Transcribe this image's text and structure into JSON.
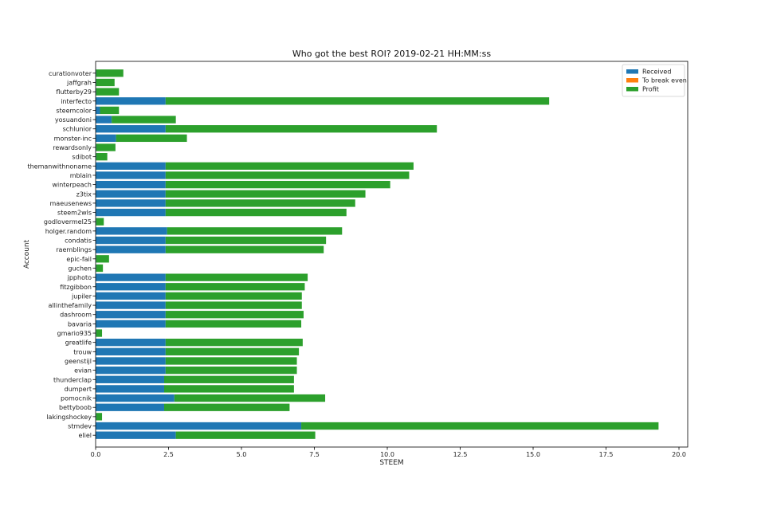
{
  "chart_data": {
    "type": "bar",
    "orientation": "horizontal",
    "stacked": true,
    "title": "Who got the best ROI? 2019-02-21 HH:MM:ss",
    "xlabel": "STEEM",
    "ylabel": "Account",
    "xlim": [
      0,
      20.3
    ],
    "xticks": [
      0.0,
      2.5,
      5.0,
      7.5,
      10.0,
      12.5,
      15.0,
      17.5,
      20.0
    ],
    "xtick_labels": [
      "0.0",
      "2.5",
      "5.0",
      "7.5",
      "10.0",
      "12.5",
      "15.0",
      "17.5",
      "20.0"
    ],
    "grid": false,
    "legend_position": "top-right",
    "categories": [
      "curationvoter",
      "jaffgrah",
      "flutterby29",
      "interfecto",
      "steemcolor",
      "yosuandoni",
      "schlunior",
      "monster-inc",
      "rewardsonly",
      "sdibot",
      "themanwithnoname",
      "mblain",
      "winterpeach",
      "z3tix",
      "maeusenews",
      "steem2wls",
      "godlovermel25",
      "holger.random",
      "condatis",
      "raemblings",
      "epic-fail",
      "guchen",
      "jpphoto",
      "fitzgibbon",
      "jupiler",
      "allinthefamily",
      "dashroom",
      "bavaria",
      "gmario935",
      "greatlife",
      "trouw",
      "geenstijl",
      "evian",
      "thunderclap",
      "dumpert",
      "pomocnik",
      "bettyboob",
      "lakingshockey",
      "stmdev",
      "eliel"
    ],
    "series": [
      {
        "name": "Received",
        "color": "#1f77b4",
        "values": [
          0.02,
          0.02,
          0.02,
          2.4,
          0.15,
          0.55,
          2.4,
          0.7,
          0.02,
          0.02,
          2.4,
          2.4,
          2.4,
          2.4,
          2.4,
          2.4,
          0.02,
          2.45,
          2.4,
          2.4,
          0.02,
          0.02,
          2.4,
          2.4,
          2.4,
          2.4,
          2.4,
          2.4,
          0.02,
          2.4,
          2.4,
          2.4,
          2.4,
          2.35,
          2.35,
          2.7,
          2.35,
          0.02,
          7.05,
          2.75
        ]
      },
      {
        "name": "To break even",
        "color": "#ff7f0e",
        "values": [
          0,
          0,
          0,
          0,
          0,
          0,
          0,
          0,
          0,
          0,
          0,
          0,
          0,
          0,
          0,
          0,
          0,
          0,
          0,
          0,
          0,
          0,
          0,
          0,
          0,
          0,
          0,
          0,
          0,
          0,
          0,
          0,
          0,
          0,
          0,
          0,
          0,
          0,
          0,
          0
        ]
      },
      {
        "name": "Profit",
        "color": "#2ca02c",
        "values": [
          0.93,
          0.63,
          0.78,
          13.15,
          0.65,
          2.2,
          9.3,
          2.43,
          0.66,
          0.38,
          8.5,
          8.35,
          7.7,
          6.85,
          6.5,
          6.2,
          0.26,
          6.0,
          5.5,
          5.42,
          0.44,
          0.23,
          4.87,
          4.77,
          4.67,
          4.67,
          4.73,
          4.65,
          0.2,
          4.7,
          4.57,
          4.5,
          4.5,
          4.45,
          4.45,
          5.17,
          4.3,
          0.2,
          12.25,
          4.78
        ]
      }
    ]
  }
}
